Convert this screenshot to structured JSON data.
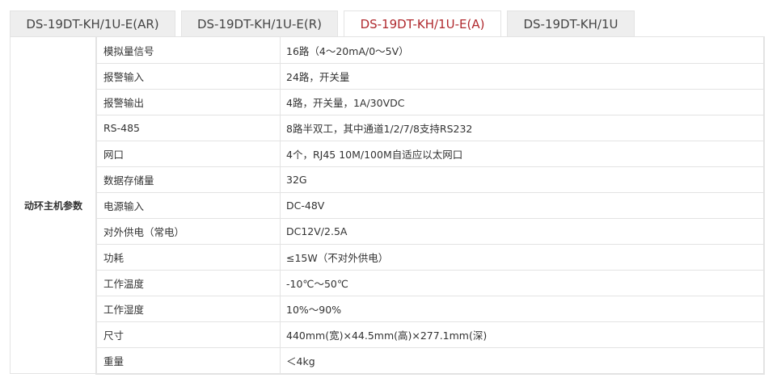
{
  "tabs": [
    {
      "label": "DS-19DT-KH/1U-E(AR)",
      "active": false
    },
    {
      "label": "DS-19DT-KH/1U-E(R)",
      "active": false
    },
    {
      "label": "DS-19DT-KH/1U-E(A)",
      "active": true
    },
    {
      "label": "DS-19DT-KH/1U",
      "active": false
    }
  ],
  "accent_color": "#b0292e",
  "table": {
    "group_label": "动环主机参数",
    "rows": [
      {
        "key": "模拟量信号",
        "value": "16路（4～20mA/0～5V）"
      },
      {
        "key": "报警输入",
        "value": "24路，开关量"
      },
      {
        "key": "报警输出",
        "value": "4路，开关量，1A/30VDC"
      },
      {
        "key": "RS-485",
        "value": "8路半双工，其中通道1/2/7/8支持RS232"
      },
      {
        "key": "网口",
        "value": "4个，RJ45 10M/100M自适应以太网口"
      },
      {
        "key": "数据存储量",
        "value": "32G"
      },
      {
        "key": "电源输入",
        "value": "DC-48V"
      },
      {
        "key": "对外供电（常电）",
        "value": "DC12V/2.5A"
      },
      {
        "key": "功耗",
        "value": "≤15W（不对外供电）"
      },
      {
        "key": "工作温度",
        "value": "-10℃～50℃"
      },
      {
        "key": "工作湿度",
        "value": "10%～90%"
      },
      {
        "key": "尺寸",
        "value": "440mm(宽)×44.5mm(高)×277.1mm(深)"
      },
      {
        "key": "重量",
        "value": "＜4kg"
      }
    ]
  }
}
